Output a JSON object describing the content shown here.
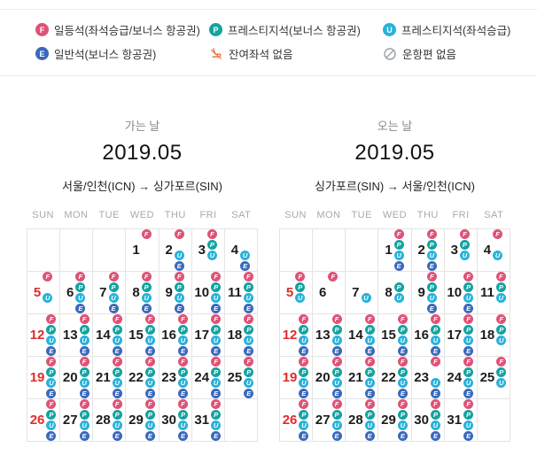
{
  "colors": {
    "F": "#df5277",
    "P": "#14a3a0",
    "U": "#28b2d9",
    "E": "#3a68bc",
    "sunday": "#e02b2b",
    "no_seat_icon": "#e87a4a",
    "no_flight_icon": "#9aa0a6"
  },
  "badge_names": {
    "F": "first-class-badge",
    "P": "prestige-bonus-badge",
    "U": "prestige-upgrade-badge",
    "E": "economy-bonus-badge"
  },
  "legend": {
    "items": [
      {
        "symbol": "F",
        "icon": "first-class-badge",
        "label": "일등석(좌석승급/보너스 항공권)"
      },
      {
        "symbol": "P",
        "icon": "prestige-bonus-badge",
        "label": "프레스티지석(보너스 항공권)"
      },
      {
        "symbol": "U",
        "icon": "prestige-upgrade-badge",
        "label": "프레스티지석(좌석승급)"
      },
      {
        "symbol": "E",
        "icon": "economy-bonus-badge",
        "label": "일반석(보너스 항공권)"
      },
      {
        "icon": "no-seat-icon",
        "label": "잔여좌석 없음"
      },
      {
        "icon": "no-flight-icon",
        "label": "운항편 없음"
      }
    ]
  },
  "weekdays": [
    "SUN",
    "MON",
    "TUE",
    "WED",
    "THU",
    "FRI",
    "SAT"
  ],
  "calendars": [
    {
      "direction_label": "가는 날",
      "month": "2019.05",
      "route": "서울/인천(ICN) → 싱가포르(SIN)",
      "weeks": [
        [
          null,
          null,
          null,
          {
            "day": 1,
            "badges": "F"
          },
          {
            "day": 2,
            "badges": "FUE"
          },
          {
            "day": 3,
            "badges": "FPU"
          },
          {
            "day": 4,
            "badges": "UE"
          }
        ],
        [
          {
            "day": 5,
            "badges": "FU"
          },
          {
            "day": 6,
            "badges": "FPUE"
          },
          {
            "day": 7,
            "badges": "FPUE"
          },
          {
            "day": 8,
            "badges": "FPUE"
          },
          {
            "day": 9,
            "badges": "FPUE"
          },
          {
            "day": 10,
            "badges": "FPUE"
          },
          {
            "day": 11,
            "badges": "FPUE"
          }
        ],
        [
          {
            "day": 12,
            "badges": "FPUE"
          },
          {
            "day": 13,
            "badges": "FPUE"
          },
          {
            "day": 14,
            "badges": "FPUE"
          },
          {
            "day": 15,
            "badges": "FPUE"
          },
          {
            "day": 16,
            "badges": "FPUE"
          },
          {
            "day": 17,
            "badges": "FPUE"
          },
          {
            "day": 18,
            "badges": "FPUE"
          }
        ],
        [
          {
            "day": 19,
            "badges": "FPUE"
          },
          {
            "day": 20,
            "badges": "FPUE"
          },
          {
            "day": 21,
            "badges": "FPUE"
          },
          {
            "day": 22,
            "badges": "FPUE"
          },
          {
            "day": 23,
            "badges": "FPUE"
          },
          {
            "day": 24,
            "badges": "FPUE"
          },
          {
            "day": 25,
            "badges": "FPUE"
          }
        ],
        [
          {
            "day": 26,
            "badges": "FPUE"
          },
          {
            "day": 27,
            "badges": "FPUE"
          },
          {
            "day": 28,
            "badges": "FPUE"
          },
          {
            "day": 29,
            "badges": "FPUE"
          },
          {
            "day": 30,
            "badges": "FPUE"
          },
          {
            "day": 31,
            "badges": "FPUE"
          },
          null
        ]
      ]
    },
    {
      "direction_label": "오는 날",
      "month": "2019.05",
      "route": "싱가포르(SIN) → 서울/인천(ICN)",
      "weeks": [
        [
          null,
          null,
          null,
          {
            "day": 1,
            "badges": "FPUE"
          },
          {
            "day": 2,
            "badges": "FPUE"
          },
          {
            "day": 3,
            "badges": "FPU"
          },
          {
            "day": 4,
            "badges": "FU"
          }
        ],
        [
          {
            "day": 5,
            "badges": "FPU"
          },
          {
            "day": 6,
            "badges": "F"
          },
          {
            "day": 7,
            "badges": "U"
          },
          {
            "day": 8,
            "badges": "PU"
          },
          {
            "day": 9,
            "badges": "FPUE"
          },
          {
            "day": 10,
            "badges": "FPUE"
          },
          {
            "day": 11,
            "badges": "FPU"
          }
        ],
        [
          {
            "day": 12,
            "badges": "FPUE"
          },
          {
            "day": 13,
            "badges": "FPUE"
          },
          {
            "day": 14,
            "badges": "FPUE"
          },
          {
            "day": 15,
            "badges": "FPUE"
          },
          {
            "day": 16,
            "badges": "FPUE"
          },
          {
            "day": 17,
            "badges": "FPUE"
          },
          {
            "day": 18,
            "badges": "FPU"
          }
        ],
        [
          {
            "day": 19,
            "badges": "FPUE"
          },
          {
            "day": 20,
            "badges": "FPUE"
          },
          {
            "day": 21,
            "badges": "FPUE"
          },
          {
            "day": 22,
            "badges": "FPUE"
          },
          {
            "day": 23,
            "badges": "FUE"
          },
          {
            "day": 24,
            "badges": "FPUE"
          },
          {
            "day": 25,
            "badges": "FPU"
          }
        ],
        [
          {
            "day": 26,
            "badges": "FPUE"
          },
          {
            "day": 27,
            "badges": "FPUE"
          },
          {
            "day": 28,
            "badges": "FPUE"
          },
          {
            "day": 29,
            "badges": "FPUE"
          },
          {
            "day": 30,
            "badges": "FPUE"
          },
          {
            "day": 31,
            "badges": "FPUE"
          },
          null
        ]
      ]
    }
  ]
}
